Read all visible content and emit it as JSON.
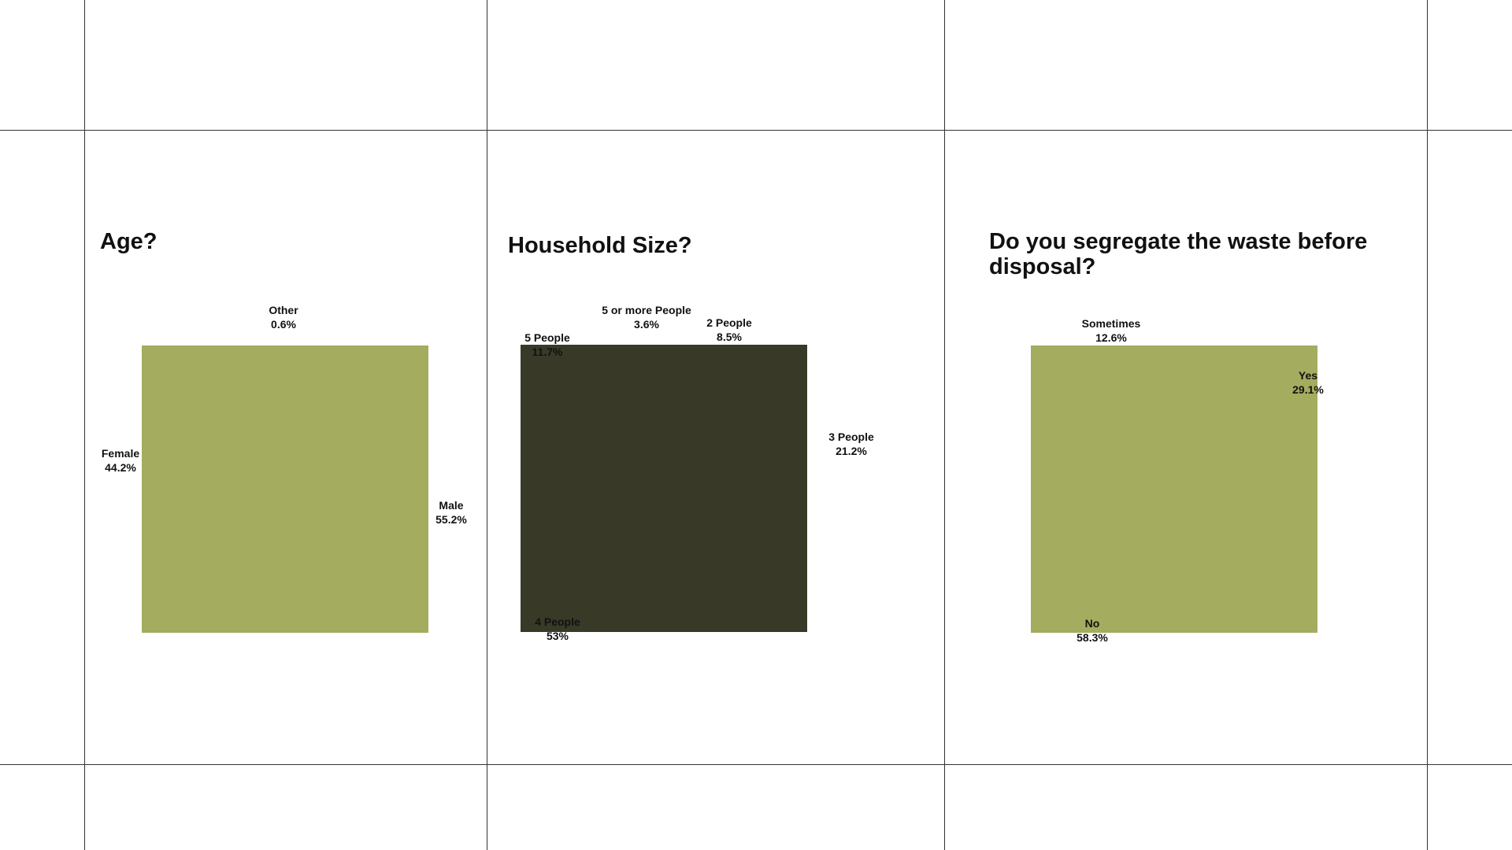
{
  "colors": {
    "olive": "#a4ac5f",
    "dark_olive": "#383a27",
    "grid": "#333333",
    "text": "#111111"
  },
  "chart_data": [
    {
      "type": "pie",
      "title": "Age?",
      "slices": [
        {
          "label": "Other",
          "value_label": "0.6%",
          "value": 0.6
        },
        {
          "label": "Female",
          "value_label": "44.2%",
          "value": 44.2
        },
        {
          "label": "Male",
          "value_label": "55.2%",
          "value": 55.2
        }
      ],
      "color": "#a4ac5f"
    },
    {
      "type": "pie",
      "title": "Household Size?",
      "slices": [
        {
          "label": "5 or more People",
          "value_label": "3.6%",
          "value": 3.6
        },
        {
          "label": "2 People",
          "value_label": "8.5%",
          "value": 8.5
        },
        {
          "label": "5 People",
          "value_label": "11.7%",
          "value": 11.7
        },
        {
          "label": "3 People",
          "value_label": "21.2%",
          "value": 21.2
        },
        {
          "label": "4 People",
          "value_label": "53%",
          "value": 53
        }
      ],
      "color": "#383a27"
    },
    {
      "type": "pie",
      "title": "Do you segregate the waste before disposal?",
      "slices": [
        {
          "label": "Sometimes",
          "value_label": "12.6%",
          "value": 12.6
        },
        {
          "label": "Yes",
          "value_label": "29.1%",
          "value": 29.1
        },
        {
          "label": "No",
          "value_label": "58.3%",
          "value": 58.3
        }
      ],
      "color": "#a4ac5f"
    }
  ]
}
